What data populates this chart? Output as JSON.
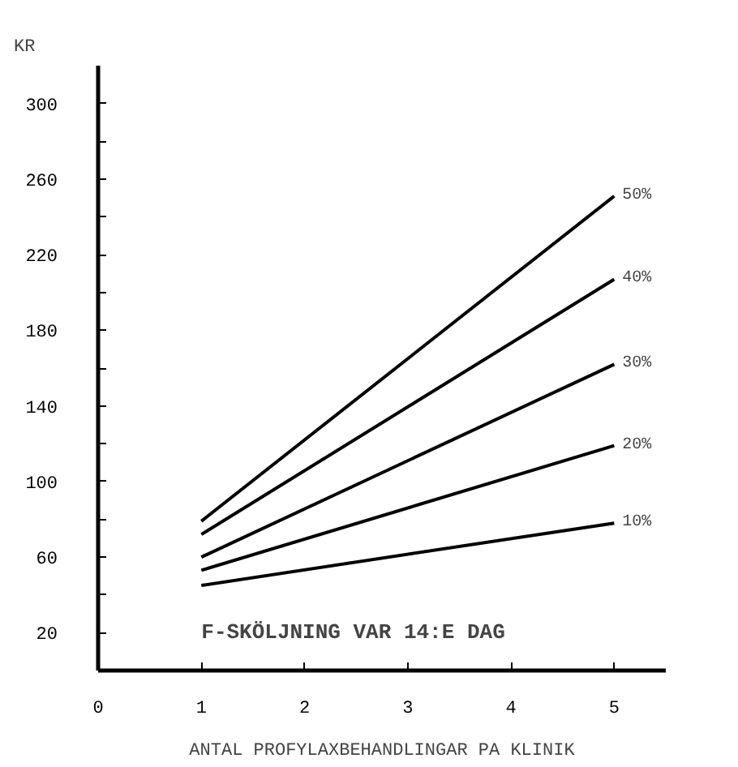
{
  "chart_data": {
    "type": "line",
    "ylabel": "KR",
    "xlabel": "ANTAL PROFYLAXBEHANDLINGAR PA KLINIK",
    "annotations": [
      "F-SKÖLJNING VAR 14:E DAG"
    ],
    "xlim": [
      0,
      5.5
    ],
    "xticks": [
      0,
      1,
      2,
      3,
      4,
      5
    ],
    "ylim": [
      0,
      320
    ],
    "yticks": [
      20,
      {
        "value": 40,
        "label": null
      },
      60,
      {
        "value": 80,
        "label": null
      },
      100,
      {
        "value": 120,
        "label": null
      },
      140,
      {
        "value": 160,
        "label": null
      },
      180,
      {
        "value": 200,
        "label": null
      },
      220,
      {
        "value": 240,
        "label": null
      },
      260,
      {
        "value": 280,
        "label": null
      },
      300
    ],
    "marker": "none",
    "line_style": "solid",
    "x": [
      1,
      5
    ],
    "series": [
      {
        "name": "50%",
        "color": "#000000",
        "values": [
          79,
          251
        ]
      },
      {
        "name": "40%",
        "color": "#000000",
        "values": [
          72,
          207
        ]
      },
      {
        "name": "30%",
        "color": "#000000",
        "values": [
          60,
          162
        ]
      },
      {
        "name": "20%",
        "color": "#000000",
        "values": [
          53,
          119
        ]
      },
      {
        "name": "10%",
        "color": "#000000",
        "values": [
          45,
          78
        ]
      }
    ]
  }
}
